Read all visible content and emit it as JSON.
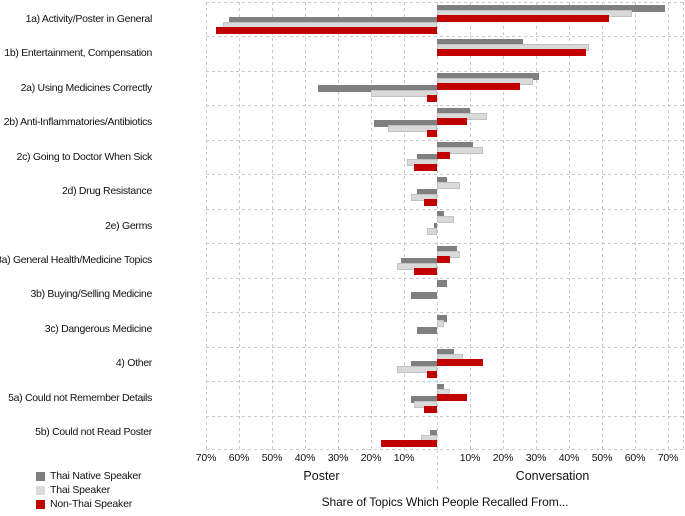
{
  "chart_data": {
    "type": "bar",
    "variant": "diverging-horizontal",
    "title": "Share of Topics Which People Recalled From...",
    "left_panel_label": "Poster",
    "right_panel_label": "Conversation",
    "tick_labels_left": [
      "70%",
      "60%",
      "50%",
      "40%",
      "30%",
      "20%",
      "10%"
    ],
    "tick_labels_right": [
      "10%",
      "20%",
      "30%",
      "40%",
      "50%",
      "60%",
      "70%"
    ],
    "axis_unit": "percent",
    "xlim": [
      0,
      70
    ],
    "grid": "dashed",
    "legend_position": "bottom-left",
    "categories": [
      "1a) Activity/Poster in General",
      "1b) Entertainment, Compensation",
      "2a) Using Medicines Correctly",
      "2b) Anti-Inflammatories/Antibiotics",
      "2c) Going to Doctor When Sick",
      "2d) Drug Resistance",
      "2e) Germs",
      "3a) General Health/Medicine Topics",
      "3b) Buying/Selling Medicine",
      "3c) Dangerous Medicine",
      "4) Other",
      "5a) Could not Remember Details",
      "5b) Could not Read Poster"
    ],
    "series": [
      {
        "name": "Thai Native Speaker",
        "color": "#7F7F7F",
        "poster": [
          63,
          0,
          36,
          19,
          6,
          6,
          1,
          11,
          8,
          6,
          8,
          8,
          2
        ],
        "conversation": [
          69,
          26,
          31,
          10,
          11,
          3,
          2,
          6,
          3,
          3,
          5,
          2,
          0
        ]
      },
      {
        "name": "Thai Speaker",
        "color": "#D9D9D9",
        "poster": [
          65,
          0,
          20,
          15,
          9,
          8,
          3,
          12,
          0,
          0,
          12,
          7,
          5
        ],
        "conversation": [
          59,
          46,
          29,
          15,
          14,
          7,
          5,
          7,
          0,
          2,
          8,
          4,
          0
        ]
      },
      {
        "name": "Non-Thai Speaker",
        "color": "#C00000",
        "poster": [
          67,
          0,
          3,
          3,
          7,
          4,
          0,
          7,
          0,
          0,
          3,
          4,
          17
        ],
        "conversation": [
          52,
          45,
          25,
          9,
          4,
          0,
          0,
          4,
          0,
          0,
          14,
          9,
          0
        ]
      }
    ]
  },
  "colors": {
    "gridline": "#c9c9c9",
    "thai_native": "#7F7F7F",
    "thai": "#D9D9D9",
    "non_thai": "#C00000",
    "text": "#111111"
  }
}
